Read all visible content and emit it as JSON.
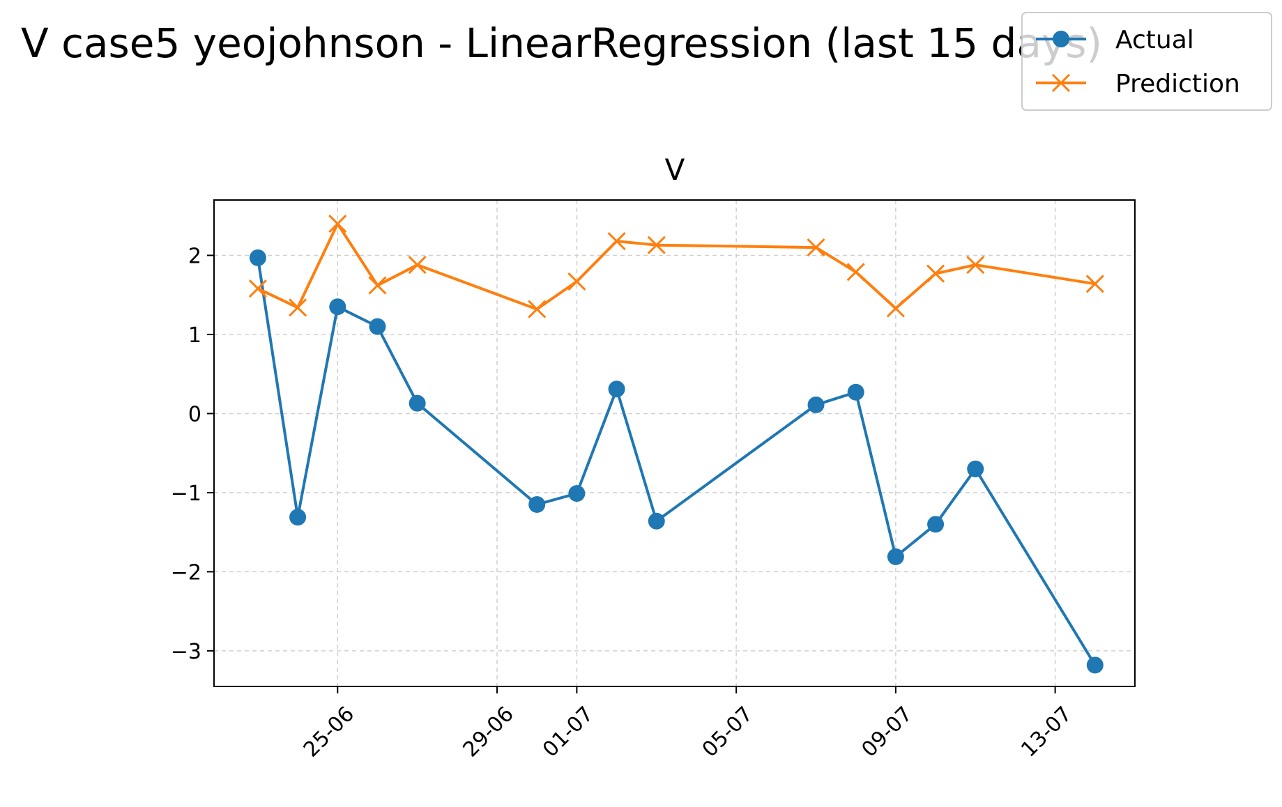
{
  "chart_data": {
    "type": "line",
    "suptitle": "V case5 yeojohnson - LinearRegression (last 15 days)",
    "title": "V",
    "xlabel": "",
    "ylabel": "",
    "x_tick_labels": [
      "25-06",
      "29-06",
      "01-07",
      "05-07",
      "09-07",
      "13-07"
    ],
    "y_tick_labels": [
      "−3",
      "−2",
      "−1",
      "0",
      "1",
      "2"
    ],
    "x": [
      "23-06",
      "24-06",
      "25-06",
      "26-06",
      "27-06",
      "30-06",
      "01-07",
      "02-07",
      "03-07",
      "07-07",
      "08-07",
      "09-07",
      "10-07",
      "11-07",
      "14-07"
    ],
    "ylim": [
      -3.45,
      2.7
    ],
    "grid": true,
    "legend_position": "top-right",
    "series": [
      {
        "name": "Actual",
        "marker": "circle",
        "color": "#1f77b4",
        "values": [
          1.97,
          -1.31,
          1.35,
          1.1,
          0.13,
          -1.15,
          -1.01,
          0.31,
          -1.36,
          0.11,
          0.27,
          -1.81,
          -1.4,
          -0.7,
          -3.18
        ]
      },
      {
        "name": "Prediction",
        "marker": "x",
        "color": "#ff7f0e",
        "values": [
          1.58,
          1.34,
          2.4,
          1.62,
          1.88,
          1.32,
          1.67,
          2.18,
          2.13,
          2.1,
          1.79,
          1.33,
          1.77,
          1.88,
          1.64
        ]
      }
    ]
  }
}
